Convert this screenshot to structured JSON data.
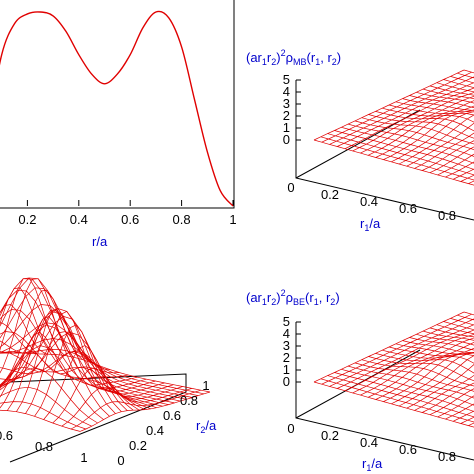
{
  "chart_data": [
    {
      "type": "line",
      "title": "",
      "xlabel": "r/a",
      "xlim": [
        0,
        1
      ],
      "x_ticks": [
        "0.2",
        "0.4",
        "0.6",
        "0.8",
        "1"
      ],
      "x": [
        0.0,
        0.05,
        0.1,
        0.15,
        0.2,
        0.25,
        0.3,
        0.35,
        0.4,
        0.45,
        0.5,
        0.55,
        0.6,
        0.65,
        0.7,
        0.75,
        0.8,
        0.85,
        0.9,
        0.95,
        1.0
      ],
      "y": [
        0.0,
        0.42,
        0.78,
        0.94,
        0.99,
        1.0,
        0.98,
        0.9,
        0.78,
        0.68,
        0.63,
        0.68,
        0.78,
        0.92,
        1.0,
        0.97,
        0.82,
        0.55,
        0.28,
        0.08,
        0.0
      ],
      "color": "#e00000"
    },
    {
      "type": "surface",
      "title_parts": [
        "(ar",
        "1",
        "r",
        "2",
        ")",
        "2",
        "ρ",
        "MB",
        "(r",
        "1",
        ", r",
        "2",
        ")"
      ],
      "xlabel": "r1/a",
      "ylabel": "r2/a",
      "z_ticks": [
        "5",
        "4",
        "3",
        "2",
        "1",
        "0"
      ],
      "x_ticks": [
        "0",
        "0.2",
        "0.4",
        "0.6",
        "0.8"
      ],
      "peak_value": 5,
      "color": "#e00000"
    },
    {
      "type": "surface",
      "title_parts": [],
      "xlabel": "",
      "ylabel": "r2/a",
      "y_ticks": [
        "1",
        "0.8",
        "0.6",
        "0.4",
        "0.2",
        "0"
      ],
      "x_ticks": [
        "0.6",
        "0.8",
        "1"
      ],
      "color": "#e00000"
    },
    {
      "type": "surface",
      "title_parts": [
        "(ar",
        "1",
        "r",
        "2",
        ")",
        "2",
        "ρ",
        "BE",
        "(r",
        "1",
        ", r",
        "2",
        ")"
      ],
      "xlabel": "r1/a",
      "ylabel": "",
      "z_ticks": [
        "5",
        "4",
        "3",
        "2",
        "1",
        "0"
      ],
      "x_ticks": [
        "0",
        "0.2",
        "0.4",
        "0.6",
        "0.8"
      ],
      "peak_value": 5,
      "color": "#e00000"
    }
  ],
  "labels": {
    "p1_xlabel": "r/a",
    "p2_xlabel_main": "r",
    "p2_xlabel_sub": "1",
    "p2_xlabel_tail": "/a",
    "p3_ylabel_main": "r",
    "p3_ylabel_sub": "2",
    "p3_ylabel_tail": "/a",
    "p4_xlabel_main": "r",
    "p4_xlabel_sub": "1",
    "p4_xlabel_tail": "/a",
    "p2_title_a": "(ar",
    "p2_title_b": "1",
    "p2_title_c": "r",
    "p2_title_d": "2",
    "p2_title_e": ")",
    "p2_title_f": "2",
    "p2_title_g": "ρ",
    "p2_title_h": "MB",
    "p2_title_i": "(r",
    "p2_title_j": "1",
    "p2_title_k": ", r",
    "p2_title_l": "2",
    "p2_title_m": ")",
    "p4_title_h": "BE"
  }
}
